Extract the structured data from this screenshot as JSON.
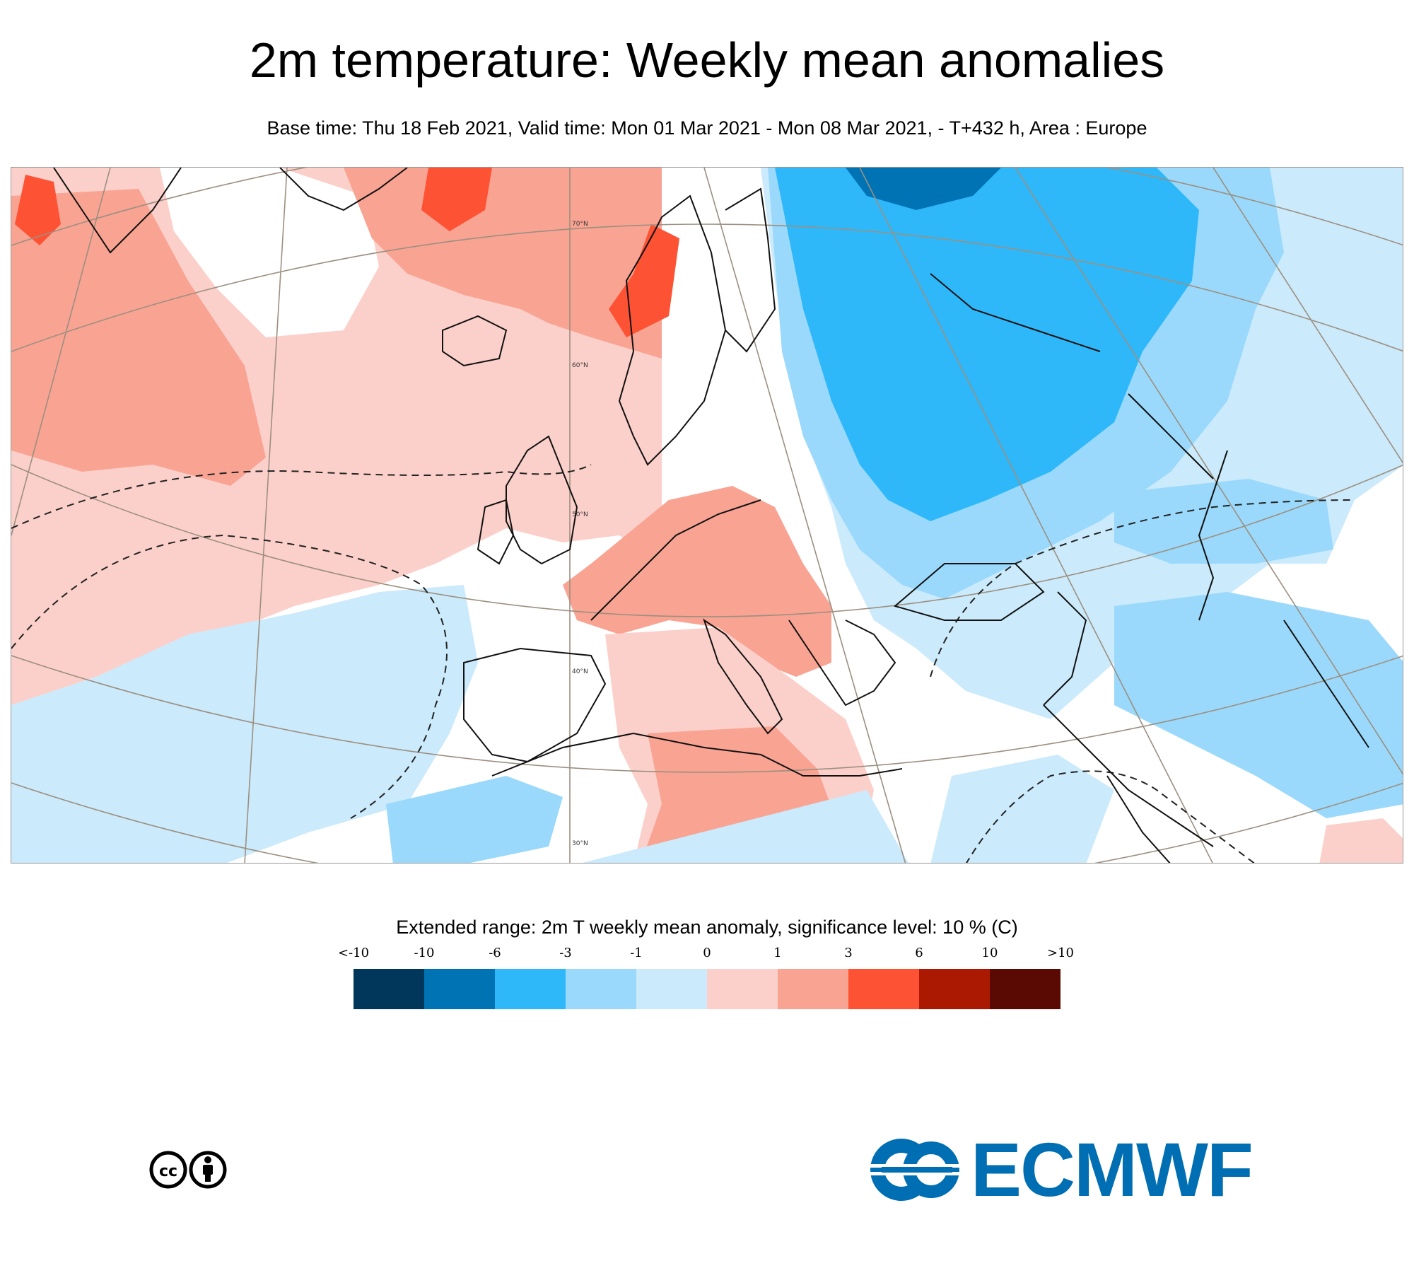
{
  "header": {
    "title": "2m temperature: Weekly mean anomalies",
    "subtitle": "Base time: Thu 18 Feb 2021, Valid time: Mon 01 Mar 2021 - Mon 08 Mar 2021, - T+432 h, Area : Europe"
  },
  "map": {
    "latitude_labels": [
      "70°N",
      "60°N",
      "50°N",
      "40°N",
      "30°N"
    ]
  },
  "legend": {
    "title": "Extended range: 2m T weekly mean anomaly, significance level: 10 % (C)",
    "ticks": [
      "<-10",
      "-10",
      "-6",
      "-3",
      "-1",
      "0",
      "1",
      "3",
      "6",
      "10",
      ">10"
    ],
    "colors": [
      "#00375a",
      "#0073b5",
      "#2fb8f9",
      "#9ad9fb",
      "#cbeafb",
      "#fcd0ca",
      "#f9a393",
      "#fd5233",
      "#ac1902",
      "#5a0a03"
    ]
  },
  "footer": {
    "license_icon": "cc-by-icon",
    "logo_text": "ECMWF",
    "logo_icon": "ecmwf-logo-icon"
  }
}
